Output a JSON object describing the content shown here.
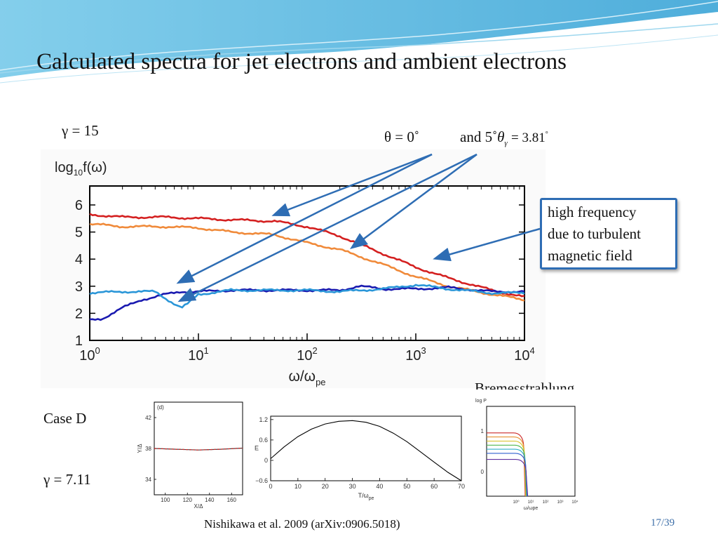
{
  "slide": {
    "title": "Calculated spectra for jet electrons and ambient electrons",
    "gamma_top": "γ = 15",
    "theta_label": "θ = 0˚",
    "and_label": "and 5˚",
    "theta_gamma_symbol": "θ",
    "theta_gamma_sub": "γ",
    "theta_gamma_value": "= 3.81",
    "theta_gamma_degree": "°",
    "callout_lines": [
      "high frequency",
      "due to turbulent",
      "magnetic field"
    ],
    "bremsstrahlung_label": "Bremesstrahlung",
    "case_label": "Case D",
    "gamma_bottom": "γ = 7.11",
    "citation": "Nishikawa et al. 2009 (arXiv:0906.5018)",
    "page_number": "17/39",
    "colors": {
      "title_text": "#111111",
      "accent_blue": "#2e6db4",
      "deco_blue": "#5bb8dd",
      "page_number": "#3c6ea8"
    }
  },
  "chart_data": [
    {
      "type": "line",
      "ylabel": "log10f(ω)",
      "xlabel": "ω/ωpe",
      "x_scale": "log",
      "xlim": [
        1,
        10000
      ],
      "ylim": [
        1,
        6.7
      ],
      "x_ticks": [
        {
          "value": 1,
          "label_base": "10",
          "label_exp": "0"
        },
        {
          "value": 10,
          "label_base": "10",
          "label_exp": "1"
        },
        {
          "value": 100,
          "label_base": "10",
          "label_exp": "2"
        },
        {
          "value": 1000,
          "label_base": "10",
          "label_exp": "3"
        },
        {
          "value": 10000,
          "label_base": "10",
          "label_exp": "4"
        }
      ],
      "y_ticks": [
        1,
        2,
        3,
        4,
        5,
        6
      ],
      "series": [
        {
          "color": "#d42020",
          "x": [
            1,
            2,
            5,
            10,
            20,
            50,
            100,
            200,
            500,
            1000,
            2000,
            5000,
            10000
          ],
          "y": [
            5.65,
            5.55,
            5.55,
            5.5,
            5.45,
            5.4,
            5.2,
            4.85,
            4.2,
            3.7,
            3.3,
            2.85,
            2.6
          ]
        },
        {
          "color": "#f08a3a",
          "x": [
            1,
            2,
            5,
            10,
            20,
            50,
            100,
            200,
            500,
            1000,
            2000,
            5000,
            10000
          ],
          "y": [
            5.3,
            5.2,
            5.2,
            5.15,
            5.0,
            4.9,
            4.6,
            4.35,
            3.8,
            3.35,
            3.0,
            2.7,
            2.5
          ]
        },
        {
          "color": "#1a1ab0",
          "x": [
            1,
            1.3,
            2,
            3,
            5,
            7,
            10,
            20,
            50,
            100,
            200,
            300,
            500,
            1000,
            2000,
            5000,
            10000
          ],
          "y": [
            1.75,
            1.8,
            2.2,
            2.5,
            2.7,
            2.8,
            2.8,
            2.85,
            2.85,
            2.85,
            2.85,
            3.0,
            2.9,
            2.9,
            2.95,
            2.8,
            2.8
          ]
        },
        {
          "color": "#2a96d8",
          "x": [
            1,
            2,
            4,
            5,
            6,
            7,
            8,
            10,
            20,
            50,
            100,
            200,
            500,
            1000,
            2000,
            5000,
            10000
          ],
          "y": [
            2.75,
            2.8,
            2.8,
            2.55,
            2.35,
            2.2,
            2.35,
            2.7,
            2.85,
            2.85,
            2.85,
            2.8,
            2.9,
            3.05,
            2.9,
            2.75,
            2.75
          ]
        }
      ]
    },
    {
      "type": "line",
      "label": "(d)",
      "xlabel": "X/Δ",
      "ylabel": "Y/Δ",
      "xlim": [
        90,
        170
      ],
      "ylim": [
        32,
        44
      ],
      "x_ticks": [
        100,
        120,
        140,
        160
      ],
      "y_ticks": [
        34,
        38,
        42
      ],
      "series": [
        {
          "color": "#444444",
          "x": [
            90,
            110,
            130,
            150,
            170
          ],
          "y": [
            38.0,
            37.9,
            37.8,
            37.9,
            38.05
          ]
        },
        {
          "color": "#cc2222",
          "x": [
            90,
            110,
            130,
            150,
            170
          ],
          "y": [
            38.0,
            37.9,
            37.8,
            37.9,
            38.05
          ]
        }
      ]
    },
    {
      "type": "line",
      "xlabel": "T/ωpe",
      "ylabel": "E",
      "xlim": [
        0,
        70
      ],
      "ylim": [
        -0.6,
        1.3
      ],
      "x_ticks": [
        0,
        10,
        20,
        30,
        40,
        50,
        60,
        70
      ],
      "y_ticks": [
        -0.6,
        0,
        0.6,
        1.2
      ],
      "series": [
        {
          "color": "#000000",
          "x": [
            0,
            5,
            10,
            15,
            20,
            25,
            30,
            35,
            40,
            45,
            50,
            55,
            60,
            65,
            70
          ],
          "y": [
            0.05,
            0.4,
            0.7,
            0.92,
            1.07,
            1.15,
            1.17,
            1.12,
            1.0,
            0.8,
            0.55,
            0.25,
            -0.05,
            -0.35,
            -0.6
          ]
        }
      ]
    },
    {
      "type": "line",
      "xlabel": "ω/ωpe",
      "ylabel": "log P",
      "x_scale": "log",
      "xlim": [
        0.01,
        10000
      ],
      "ylim": [
        -0.6,
        1.6
      ],
      "x_ticks": [
        {
          "value": 1,
          "label": "10⁰"
        },
        {
          "value": 10,
          "label": "10¹"
        },
        {
          "value": 100,
          "label": "10²"
        },
        {
          "value": 1000,
          "label": "10³"
        },
        {
          "value": 10000,
          "label": "10⁴"
        }
      ],
      "y_ticks": [
        0,
        1
      ],
      "series": [
        {
          "color": "#cc2a2a",
          "plateau": 0.95
        },
        {
          "color": "#e89030",
          "plateau": 0.85
        },
        {
          "color": "#d8c020",
          "plateau": 0.75
        },
        {
          "color": "#50b850",
          "plateau": 0.65
        },
        {
          "color": "#30b0c8",
          "plateau": 0.55
        },
        {
          "color": "#3060d0",
          "plateau": 0.45
        },
        {
          "color": "#6030a0",
          "plateau": 0.3
        }
      ]
    }
  ]
}
